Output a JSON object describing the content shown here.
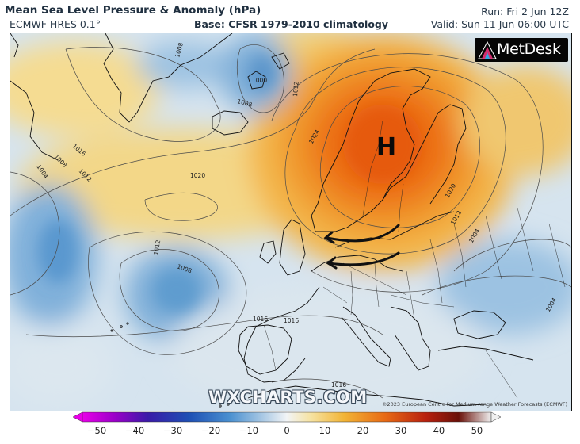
{
  "header": {
    "title": "Mean Sea Level Pressure & Anomaly (hPa)",
    "model": "ECMWF HRES 0.1°",
    "base": "Base: CFSR 1979-2010 climatology",
    "run": "Run: Fri 2 Jun 12Z",
    "valid": "Valid: Sun 11 Jun 06:00 UTC"
  },
  "logo": {
    "text": "MetDesk"
  },
  "watermark": "WXCHARTS.COM",
  "copyright": "©2023 European Centre for Medium-range Weather Forecasts (ECMWF)",
  "map": {
    "high_label": "H",
    "isobar_labels": [
      {
        "text": "1008",
        "key": "iso1"
      },
      {
        "text": "1000",
        "key": "iso2"
      },
      {
        "text": "1008",
        "key": "iso3"
      },
      {
        "text": "1012",
        "key": "iso4"
      },
      {
        "text": "1016",
        "key": "iso5"
      },
      {
        "text": "1008",
        "key": "iso6"
      },
      {
        "text": "1012",
        "key": "iso7"
      },
      {
        "text": "1004",
        "key": "iso8"
      },
      {
        "text": "1020",
        "key": "iso9"
      },
      {
        "text": "1024",
        "key": "iso10"
      },
      {
        "text": "1020",
        "key": "iso11"
      },
      {
        "text": "1012",
        "key": "iso12"
      },
      {
        "text": "1004",
        "key": "iso13"
      },
      {
        "text": "1008",
        "key": "iso14"
      },
      {
        "text": "1012",
        "key": "iso15"
      },
      {
        "text": "1016",
        "key": "iso16"
      },
      {
        "text": "1016",
        "key": "iso17"
      },
      {
        "text": "1016",
        "key": "iso18"
      },
      {
        "text": "1004",
        "key": "iso19"
      }
    ]
  },
  "colorbar": {
    "ticks": [
      "−50",
      "−40",
      "−30",
      "−20",
      "−10",
      "0",
      "10",
      "20",
      "30",
      "40",
      "50"
    ],
    "colors": [
      "#b000c8",
      "#5a00b4",
      "#1428a0",
      "#2c6fc0",
      "#7fb0dc",
      "#d8e6f2",
      "#f2d48c",
      "#f0a830",
      "#e85010",
      "#a01e0a",
      "#6b1208"
    ]
  }
}
